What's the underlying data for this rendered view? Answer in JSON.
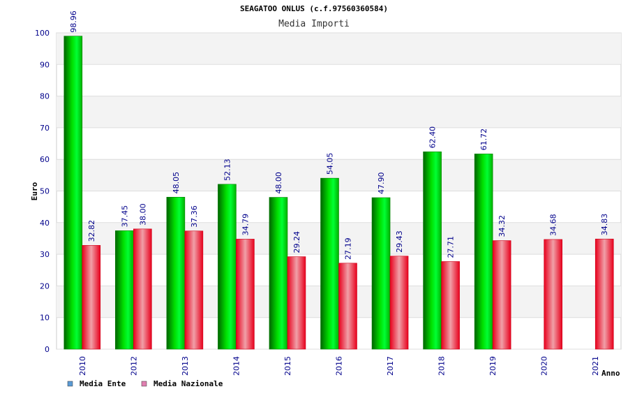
{
  "chart_data": {
    "type": "bar",
    "title": "SEAGATOO ONLUS (c.f.97560360584)",
    "subtitle": "Media Importi",
    "xlabel": "Anno",
    "ylabel": "Euro",
    "ylim": [
      0,
      100
    ],
    "yticks": [
      "0",
      "10",
      "20",
      "30",
      "40",
      "50",
      "60",
      "70",
      "80",
      "90",
      "100"
    ],
    "grid": true,
    "legend_position": "bottom-left",
    "categories": [
      "2010",
      "2012",
      "2013",
      "2014",
      "2015",
      "2016",
      "2017",
      "2018",
      "2019",
      "2020",
      "2021"
    ],
    "series": [
      {
        "name": "Media Ente",
        "legend_color": "#5b9bd5",
        "color": "#00cc00",
        "values": [
          98.96,
          37.45,
          48.05,
          52.13,
          48.0,
          54.05,
          47.9,
          62.4,
          61.72,
          null,
          null
        ],
        "labels": [
          "98.96",
          "37.45",
          "48.05",
          "52.13",
          "48.00",
          "54.05",
          "47.90",
          "62.40",
          "61.72",
          "",
          ""
        ]
      },
      {
        "name": "Media Nazionale",
        "legend_color": "#e07fb0",
        "color": "#ee0022",
        "values": [
          32.82,
          38.0,
          37.36,
          34.79,
          29.24,
          27.19,
          29.43,
          27.71,
          34.32,
          34.68,
          34.83
        ],
        "labels": [
          "32.82",
          "38.00",
          "37.36",
          "34.79",
          "29.24",
          "27.19",
          "29.43",
          "27.71",
          "34.32",
          "34.68",
          "34.83"
        ]
      }
    ]
  }
}
